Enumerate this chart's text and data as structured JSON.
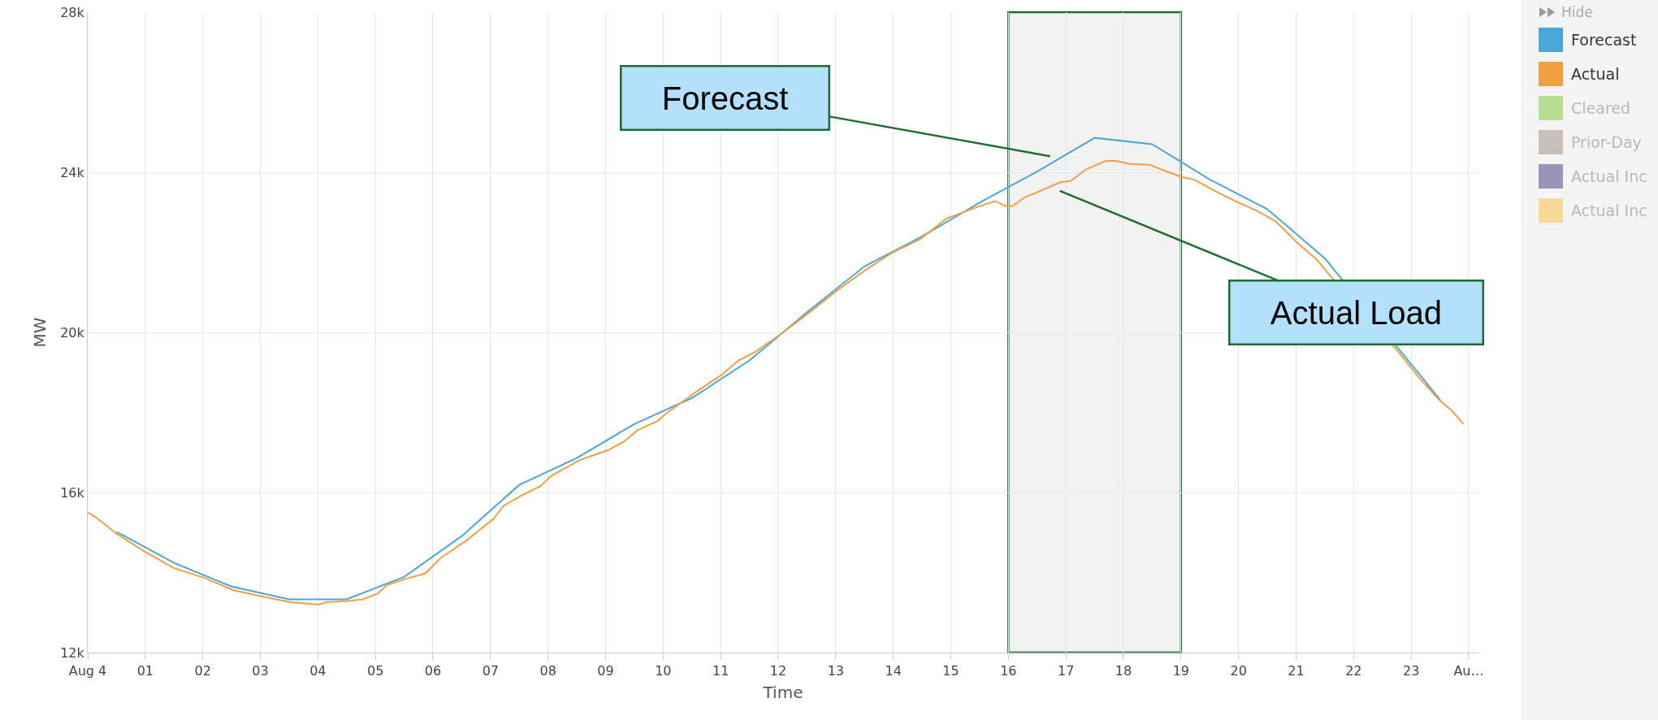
{
  "chart_data": {
    "type": "line",
    "xlabel": "Time",
    "ylabel": "MW",
    "legend_title": "Hide",
    "xlim": [
      0,
      24.17
    ],
    "xticks": [
      {
        "value": 0,
        "label": "Aug 4"
      },
      {
        "value": 1,
        "label": "01"
      },
      {
        "value": 2,
        "label": "02"
      },
      {
        "value": 3,
        "label": "03"
      },
      {
        "value": 4,
        "label": "04"
      },
      {
        "value": 5,
        "label": "05"
      },
      {
        "value": 6,
        "label": "06"
      },
      {
        "value": 7,
        "label": "07"
      },
      {
        "value": 8,
        "label": "08"
      },
      {
        "value": 9,
        "label": "09"
      },
      10,
      11,
      12,
      13,
      14,
      15,
      16,
      17,
      18,
      19,
      20,
      21,
      22,
      23,
      {
        "value": 24,
        "label": "Au…"
      }
    ],
    "ylim": [
      12000,
      28000
    ],
    "yticks": [
      {
        "value": 12000,
        "label": "12k"
      },
      {
        "value": 16000,
        "label": "16k"
      },
      {
        "value": 20000,
        "label": "20k"
      },
      {
        "value": 24000,
        "label": "24k"
      },
      {
        "value": 28000,
        "label": "28k"
      }
    ],
    "grid": true,
    "legend": "top right",
    "marker": "none",
    "line_style": "solid",
    "bands": [
      {
        "axis": "x",
        "from": 16,
        "to": 19,
        "color": "#f2f2f2"
      }
    ],
    "annotations": [
      "Forecast",
      "Actual Load"
    ],
    "series": [
      {
        "name": "Forecast",
        "color": "#4aa8d8",
        "x": [
          0.5,
          1.5,
          2.5,
          3.5,
          4.5,
          5.5,
          6.5,
          7.5,
          8.5,
          9.5,
          10.5,
          11.5,
          12.5,
          13.5,
          14.5,
          15.5,
          16.5,
          17.5,
          18.5,
          19.5,
          20.5,
          21.5,
          23.5
        ],
        "values": [
          15020,
          14240,
          13650,
          13330,
          13330,
          13890,
          14910,
          16190,
          16860,
          17710,
          18360,
          19300,
          20500,
          21650,
          22400,
          23240,
          24020,
          24860,
          24700,
          23820,
          23080,
          21850,
          18320
        ]
      },
      {
        "name": "Actual",
        "color": "#f0a040",
        "x": [
          0,
          0.15,
          0.52,
          0.97,
          1.5,
          2.06,
          2.53,
          3.06,
          3.53,
          4.01,
          4.15,
          4.53,
          4.78,
          5.05,
          5.19,
          5.55,
          5.87,
          6.14,
          6.6,
          7.05,
          7.23,
          7.55,
          7.87,
          8.05,
          8.55,
          9.05,
          9.32,
          9.55,
          9.91,
          10.05,
          10.59,
          11,
          11.32,
          11.59,
          12.09,
          12.58,
          13,
          13.52,
          13.99,
          14.46,
          14.92,
          15.49,
          15.77,
          15.96,
          16.07,
          16.29,
          16.52,
          16.9,
          17.08,
          17.37,
          17.69,
          17.85,
          18.12,
          18.45,
          18.77,
          19,
          19.24,
          19.62,
          20,
          20.32,
          20.65,
          21.03,
          21.36,
          21.59,
          22.77,
          23.14,
          23.47,
          23.7,
          23.91
        ],
        "values": [
          15500,
          15370,
          14950,
          14540,
          14110,
          13850,
          13560,
          13390,
          13260,
          13200,
          13260,
          13290,
          13330,
          13480,
          13680,
          13850,
          13980,
          14370,
          14820,
          15340,
          15670,
          15930,
          16160,
          16410,
          16810,
          17060,
          17270,
          17550,
          17790,
          17970,
          18530,
          18920,
          19310,
          19500,
          20000,
          20540,
          21020,
          21560,
          22000,
          22320,
          22840,
          23150,
          23280,
          23150,
          23150,
          23380,
          23510,
          23750,
          23780,
          24090,
          24280,
          24290,
          24210,
          24190,
          24010,
          23890,
          23810,
          23510,
          23240,
          23040,
          22770,
          22230,
          21820,
          21420,
          19530,
          18860,
          18340,
          18050,
          17710
        ]
      },
      {
        "name": "Cleared",
        "color": "#b7dc8f"
      },
      {
        "name": "Prior-Day",
        "color": "#c8c0b8"
      },
      {
        "name": "Actual Inc",
        "color": "#9a94b8"
      },
      {
        "name": "Actual Inc",
        "color": "#f8d896"
      }
    ]
  }
}
